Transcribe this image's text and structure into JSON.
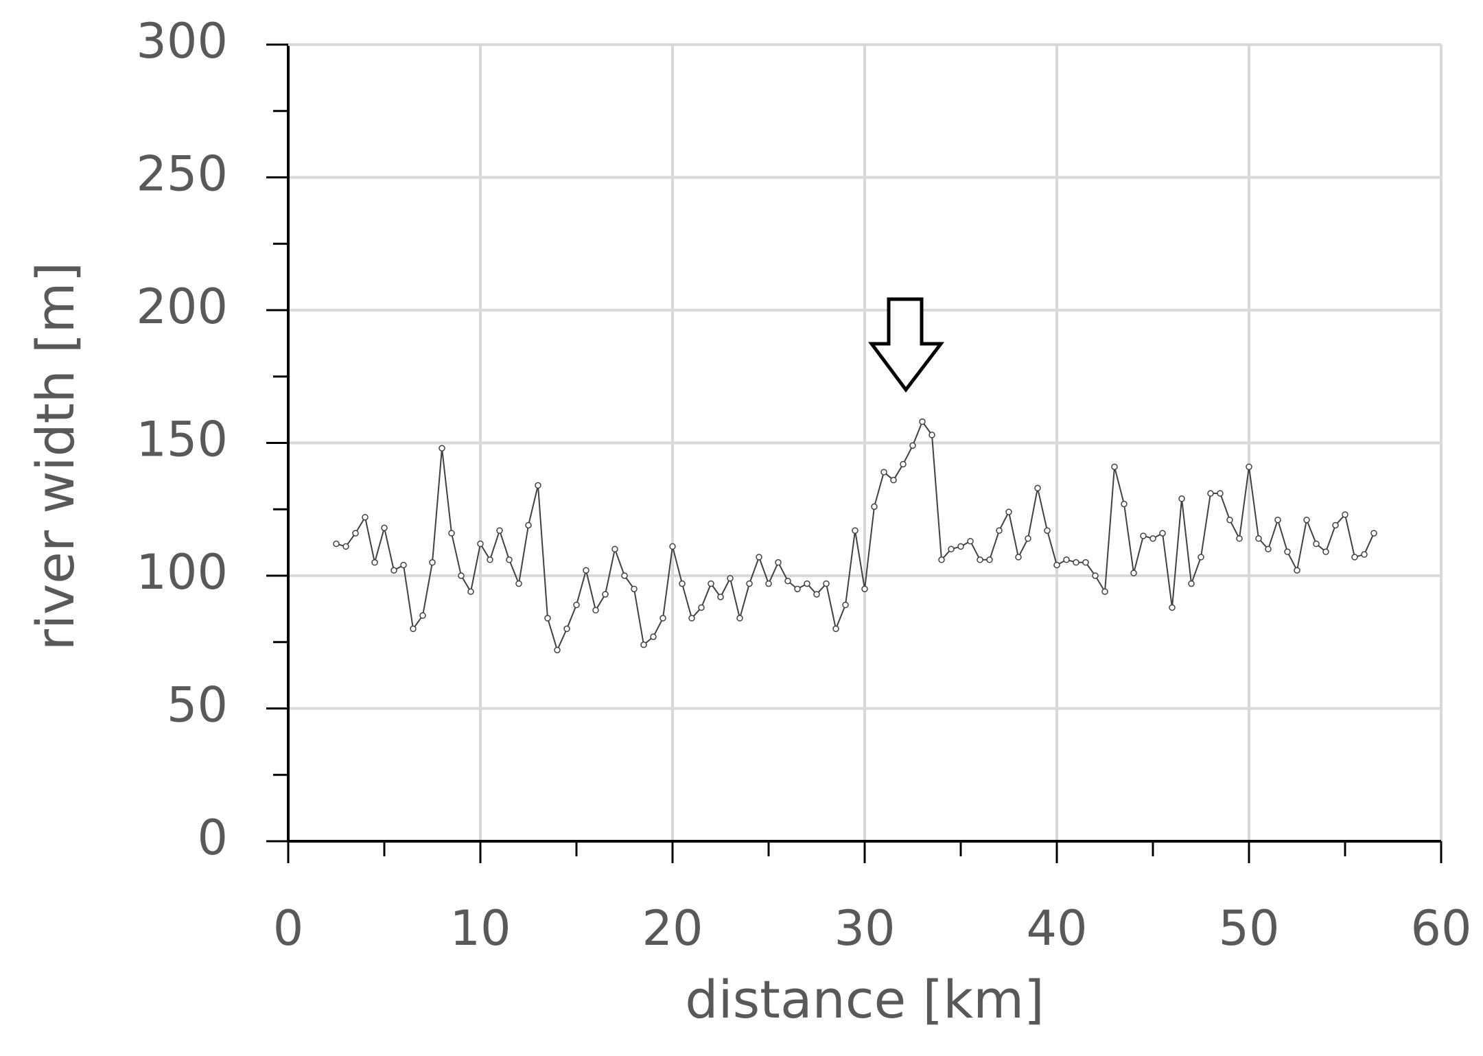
{
  "chart_data": {
    "type": "line",
    "xlabel": "distance [km]",
    "ylabel": "river width [m]",
    "xlim": [
      0,
      60
    ],
    "xticks": [
      0,
      10,
      20,
      30,
      40,
      50,
      60
    ],
    "xminorticks": [
      5,
      15,
      25,
      35,
      45,
      55
    ],
    "ylim": [
      0,
      300
    ],
    "yticks": [
      0,
      50,
      100,
      150,
      200,
      250,
      300
    ],
    "yminorticks": [
      25,
      75,
      125,
      175,
      225,
      275
    ],
    "grid": true,
    "series": [
      {
        "color": "#404040",
        "x": [
          2.5,
          3,
          3.5,
          4,
          4.5,
          5,
          5.5,
          6,
          6.5,
          7,
          7.5,
          8,
          8.5,
          9,
          9.5,
          10,
          10.5,
          11,
          11.5,
          12,
          12.5,
          13,
          13.5,
          14,
          14.5,
          15,
          15.5,
          16,
          16.5,
          17,
          17.5,
          18,
          18.5,
          19,
          19.5,
          20,
          20.5,
          21,
          21.5,
          22,
          22.5,
          23,
          23.5,
          24,
          24.5,
          25,
          25.5,
          26,
          26.5,
          27,
          27.5,
          28,
          28.5,
          29,
          29.5,
          30,
          30.5,
          31,
          31.5,
          32,
          32.5,
          33,
          33.5,
          34,
          34.5,
          35,
          35.5,
          36,
          36.5,
          37,
          37.5,
          38,
          38.5,
          39,
          39.5,
          40,
          40.5,
          41,
          41.5,
          42,
          42.5,
          43,
          43.5,
          44,
          44.5,
          45,
          45.5,
          46,
          46.5,
          47,
          47.5,
          48,
          48.5,
          49,
          49.5,
          50,
          50.5,
          51,
          51.5,
          52,
          52.5,
          53,
          53.5,
          54,
          54.5,
          55,
          55.5,
          56,
          56.5
        ],
        "values": [
          112,
          111,
          116,
          122,
          105,
          118,
          102,
          104,
          80,
          85,
          105,
          148,
          116,
          100,
          94,
          112,
          106,
          117,
          106,
          97,
          119,
          134,
          84,
          72,
          80,
          89,
          102,
          87,
          93,
          110,
          100,
          95,
          74,
          77,
          84,
          111,
          97,
          84,
          88,
          97,
          92,
          99,
          84,
          97,
          107,
          97,
          105,
          98,
          95,
          97,
          93,
          97,
          80,
          89,
          117,
          95,
          126,
          139,
          136,
          142,
          149,
          158,
          153,
          106,
          110,
          111,
          113,
          106,
          106,
          117,
          124,
          107,
          114,
          133,
          117,
          104,
          106,
          105,
          105,
          100,
          94,
          141,
          127,
          101,
          115,
          114,
          116,
          88,
          129,
          97,
          107,
          131,
          131,
          121,
          114,
          141,
          114,
          110,
          121,
          109,
          102,
          121,
          112,
          109,
          119,
          123,
          107,
          108,
          116
        ]
      }
    ]
  }
}
